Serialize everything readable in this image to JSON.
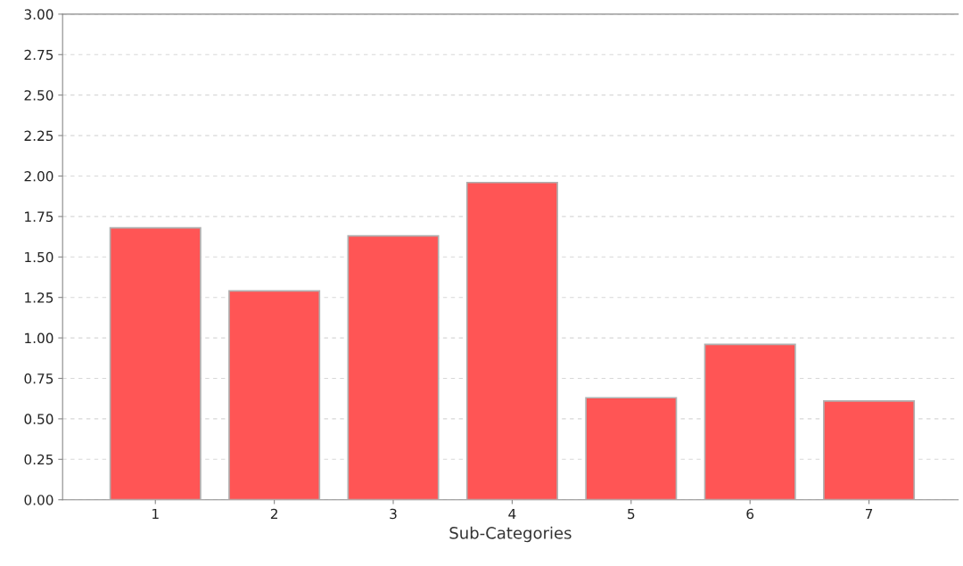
{
  "chart_data": {
    "type": "bar",
    "xlabel": "Sub-Categories",
    "categories": [
      "1",
      "2",
      "3",
      "4",
      "5",
      "6",
      "7"
    ],
    "values": [
      1.68,
      1.29,
      1.63,
      1.96,
      0.63,
      0.96,
      0.61
    ],
    "color": "#ff5555",
    "ylim": [
      0,
      3
    ],
    "yticks": [
      {
        "value": 0,
        "label": "0.00"
      },
      {
        "value": 0.25,
        "label": "0.25"
      },
      {
        "value": 0.5,
        "label": "0.50"
      },
      {
        "value": 0.75,
        "label": "0.75"
      },
      {
        "value": 1,
        "label": "1.00"
      },
      {
        "value": 1.25,
        "label": "1.25"
      },
      {
        "value": 1.5,
        "label": "1.50"
      },
      {
        "value": 1.75,
        "label": "1.75"
      },
      {
        "value": 2,
        "label": "2.00"
      },
      {
        "value": 2.25,
        "label": "2.25"
      },
      {
        "value": 2.5,
        "label": "2.50"
      },
      {
        "value": 2.75,
        "label": "2.75"
      },
      {
        "value": 3,
        "label": "3.00"
      }
    ],
    "grid": "y"
  }
}
